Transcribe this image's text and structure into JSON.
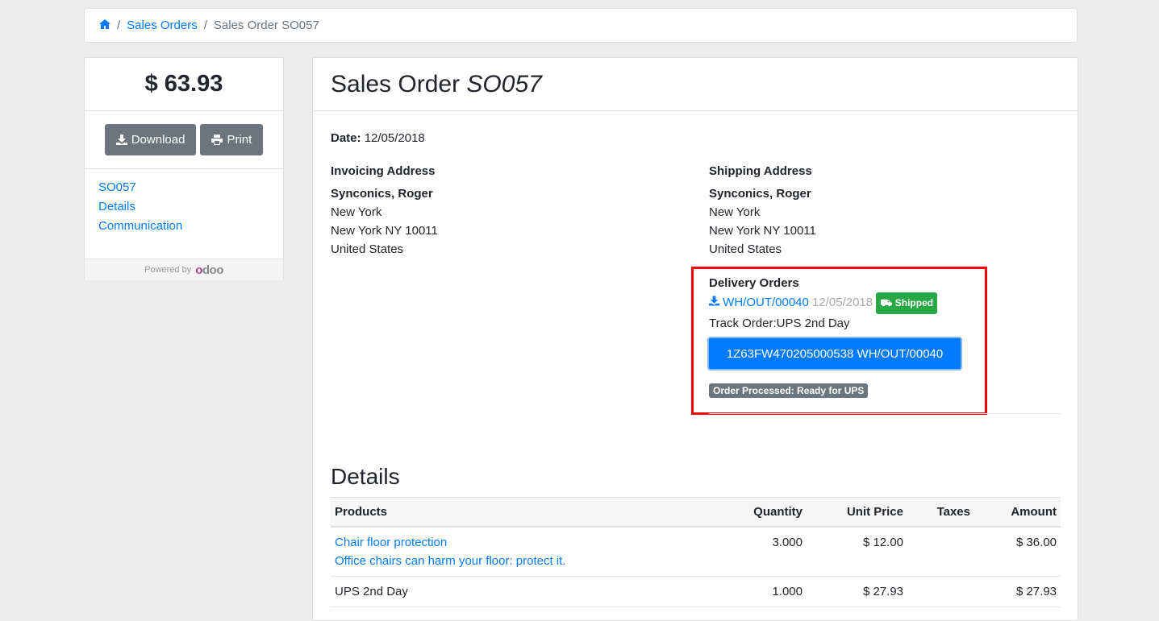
{
  "breadcrumb": {
    "home_icon": "home-icon",
    "items": [
      "Sales Orders"
    ],
    "current": "Sales Order SO057"
  },
  "sidebar": {
    "amount": "$ 63.93",
    "download_label": "Download",
    "print_label": "Print",
    "links": [
      "SO057",
      "Details",
      "Communication"
    ],
    "powered_by": "Powered by",
    "brand": "odoo"
  },
  "main": {
    "title_prefix": "Sales Order",
    "title_ref": "SO057",
    "date_label": "Date:",
    "date_value": "12/05/2018",
    "invoicing": {
      "heading": "Invoicing Address",
      "name": "Synconics, Roger",
      "lines": [
        "New York",
        "New York NY 10011",
        "United States"
      ]
    },
    "shipping": {
      "heading": "Shipping Address",
      "name": "Synconics, Roger",
      "lines": [
        "New York",
        "New York NY 10011",
        "United States"
      ]
    },
    "delivery": {
      "heading": "Delivery Orders",
      "ref": "WH/OUT/00040",
      "date": "12/05/2018",
      "status": "Shipped",
      "status_color": "#28a745",
      "track_label": "Track Order:UPS 2nd Day",
      "tracking_button": "1Z63FW470205000538 WH/OUT/00040",
      "processed_badge": "Order Processed: Ready for UPS"
    },
    "details_heading": "Details",
    "table": {
      "headers": [
        "Products",
        "Quantity",
        "Unit Price",
        "Taxes",
        "Amount"
      ],
      "rows": [
        {
          "product": "Chair floor protection",
          "description": "Office chairs can harm your floor: protect it.",
          "quantity": "3.000",
          "unit_price": "$ 12.00",
          "taxes": "",
          "amount": "$ 36.00"
        },
        {
          "product": "UPS 2nd Day",
          "description": "",
          "quantity": "1.000",
          "unit_price": "$ 27.93",
          "taxes": "",
          "amount": "$ 27.93"
        }
      ]
    }
  }
}
